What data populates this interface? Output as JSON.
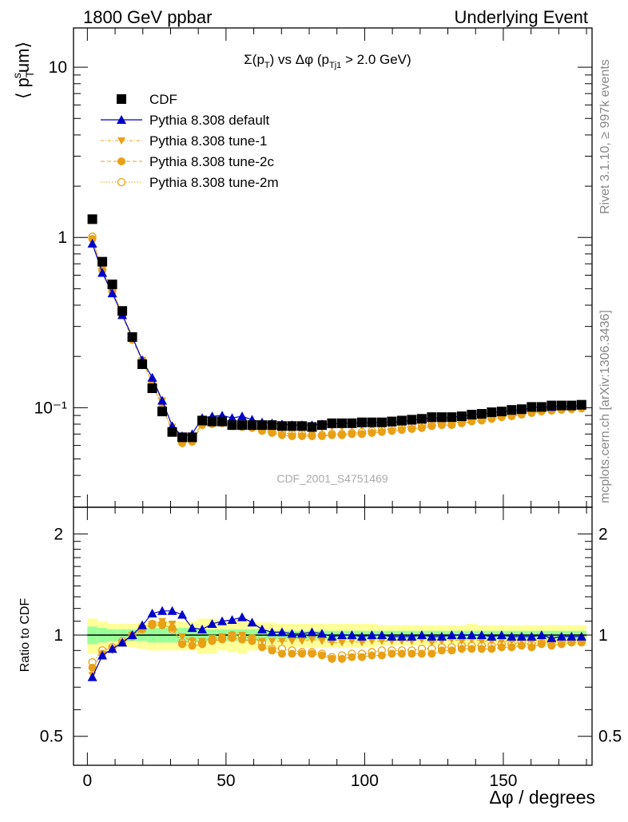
{
  "header": {
    "left": "1800 GeV ppbar",
    "right": "Underlying Event"
  },
  "side": {
    "rivet": "Rivet 3.1.10, ≥ 997k events",
    "mcplots": "mcplots.cern.ch [arXiv:1306.3436]"
  },
  "watermark": "CDF_2001_S4751469",
  "colors": {
    "data": "#000000",
    "default": "#0000cc",
    "tune": "#e8a015",
    "band_inner": "#99ff99",
    "band_outer": "#ffff99"
  },
  "chart_data": [
    {
      "type": "scatter",
      "title": "Σ(pT) vs Δφ (pTj1 > 2.0 GeV)",
      "ylabel": "⟨ pT sum ⟩",
      "xlabel": "",
      "yscale": "log",
      "xlim": [
        -5,
        182
      ],
      "ylim": [
        0.026,
        17
      ],
      "yticks": [
        {
          "v": 10,
          "label": "10"
        },
        {
          "v": 1,
          "label": "1"
        },
        {
          "v": 0.1,
          "label": "10⁻¹"
        }
      ],
      "legend": {
        "placement": "top-left",
        "entries": [
          "CDF",
          "Pythia 8.308 default",
          "Pythia 8.308 tune-1",
          "Pythia 8.308 tune-2c",
          "Pythia 8.308 tune-2m"
        ]
      },
      "x": [
        1.8,
        5.4,
        9.0,
        12.6,
        16.2,
        19.8,
        23.4,
        27.0,
        30.6,
        34.2,
        37.8,
        41.4,
        45.0,
        48.6,
        52.2,
        55.8,
        59.4,
        63.0,
        66.6,
        70.2,
        73.8,
        77.4,
        81.0,
        84.6,
        88.2,
        91.8,
        95.4,
        99.0,
        102.6,
        106.2,
        109.8,
        113.4,
        117.0,
        120.6,
        124.2,
        127.8,
        131.4,
        135.0,
        138.6,
        142.2,
        145.8,
        149.4,
        153.0,
        156.6,
        160.2,
        163.8,
        167.4,
        171.0,
        174.6,
        178.2
      ],
      "series": [
        {
          "name": "CDF",
          "values": [
            1.28,
            0.72,
            0.53,
            0.37,
            0.26,
            0.18,
            0.13,
            0.095,
            0.072,
            0.067,
            0.067,
            0.084,
            0.083,
            0.083,
            0.079,
            0.079,
            0.079,
            0.079,
            0.079,
            0.078,
            0.078,
            0.078,
            0.077,
            0.079,
            0.081,
            0.081,
            0.081,
            0.082,
            0.082,
            0.082,
            0.083,
            0.084,
            0.085,
            0.086,
            0.088,
            0.088,
            0.088,
            0.089,
            0.091,
            0.092,
            0.094,
            0.095,
            0.097,
            0.098,
            0.101,
            0.101,
            0.103,
            0.103,
            0.103,
            0.104
          ]
        },
        {
          "name": "Pythia 8.308 default",
          "values": [
            0.92,
            0.62,
            0.47,
            0.35,
            0.26,
            0.19,
            0.15,
            0.11,
            0.078,
            0.068,
            0.07,
            0.087,
            0.089,
            0.09,
            0.087,
            0.089,
            0.085,
            0.082,
            0.081,
            0.08,
            0.079,
            0.079,
            0.079,
            0.08,
            0.08,
            0.081,
            0.081,
            0.081,
            0.082,
            0.082,
            0.082,
            0.083,
            0.084,
            0.086,
            0.087,
            0.087,
            0.088,
            0.089,
            0.091,
            0.092,
            0.093,
            0.095,
            0.096,
            0.097,
            0.1,
            0.101,
            0.101,
            0.102,
            0.102,
            0.103
          ]
        },
        {
          "name": "Pythia 8.308 tune-1",
          "values": [
            0.94,
            0.63,
            0.48,
            0.35,
            0.26,
            0.19,
            0.14,
            0.11,
            0.077,
            0.065,
            0.066,
            0.081,
            0.082,
            0.082,
            0.079,
            0.079,
            0.077,
            0.076,
            0.076,
            0.075,
            0.075,
            0.075,
            0.075,
            0.076,
            0.077,
            0.077,
            0.078,
            0.078,
            0.079,
            0.079,
            0.08,
            0.081,
            0.082,
            0.083,
            0.084,
            0.085,
            0.085,
            0.086,
            0.088,
            0.089,
            0.09,
            0.092,
            0.093,
            0.095,
            0.097,
            0.098,
            0.099,
            0.1,
            0.1,
            0.101
          ]
        },
        {
          "name": "Pythia 8.308 tune-2c",
          "values": [
            0.98,
            0.64,
            0.48,
            0.35,
            0.25,
            0.19,
            0.14,
            0.1,
            0.074,
            0.062,
            0.063,
            0.079,
            0.08,
            0.081,
            0.078,
            0.077,
            0.076,
            0.073,
            0.071,
            0.069,
            0.068,
            0.068,
            0.068,
            0.068,
            0.069,
            0.069,
            0.07,
            0.07,
            0.071,
            0.072,
            0.073,
            0.074,
            0.075,
            0.076,
            0.078,
            0.079,
            0.079,
            0.081,
            0.083,
            0.084,
            0.086,
            0.088,
            0.089,
            0.091,
            0.093,
            0.095,
            0.096,
            0.097,
            0.098,
            0.099
          ]
        },
        {
          "name": "Pythia 8.308 tune-2m",
          "values": [
            1.01,
            0.65,
            0.49,
            0.36,
            0.26,
            0.19,
            0.14,
            0.1,
            0.074,
            0.062,
            0.064,
            0.08,
            0.081,
            0.082,
            0.079,
            0.078,
            0.077,
            0.075,
            0.072,
            0.071,
            0.07,
            0.07,
            0.069,
            0.069,
            0.07,
            0.07,
            0.071,
            0.072,
            0.073,
            0.074,
            0.075,
            0.076,
            0.077,
            0.078,
            0.08,
            0.081,
            0.081,
            0.083,
            0.085,
            0.086,
            0.088,
            0.089,
            0.091,
            0.093,
            0.095,
            0.096,
            0.097,
            0.099,
            0.099,
            0.1
          ]
        }
      ]
    },
    {
      "type": "scatter",
      "title": "",
      "ylabel": "Ratio to CDF",
      "xlabel": "Δφ / degrees",
      "yscale": "log",
      "xlim": [
        -5,
        182
      ],
      "ylim": [
        0.41,
        2.4
      ],
      "yticks": [
        {
          "v": 2,
          "label": "2"
        },
        {
          "v": 1,
          "label": "1"
        },
        {
          "v": 0.5,
          "label": "0.5"
        }
      ],
      "xticks": [
        0,
        50,
        100,
        150
      ],
      "band_inner": [
        0.06,
        0.05,
        0.04,
        0.04,
        0.04,
        0.04,
        0.05,
        0.05,
        0.05,
        0.05,
        0.05,
        0.04,
        0.04,
        0.04,
        0.04,
        0.04,
        0.04,
        0.04,
        0.03,
        0.03,
        0.03,
        0.03,
        0.03,
        0.03,
        0.03,
        0.03,
        0.03,
        0.03,
        0.03,
        0.03,
        0.03,
        0.03,
        0.03,
        0.03,
        0.03,
        0.03,
        0.03,
        0.03,
        0.03,
        0.03,
        0.03,
        0.03,
        0.03,
        0.03,
        0.03,
        0.03,
        0.03,
        0.03,
        0.03,
        0.03
      ],
      "band_outer": [
        0.12,
        0.1,
        0.08,
        0.08,
        0.08,
        0.09,
        0.1,
        0.1,
        0.1,
        0.1,
        0.1,
        0.12,
        0.12,
        0.1,
        0.11,
        0.12,
        0.1,
        0.09,
        0.09,
        0.08,
        0.08,
        0.08,
        0.08,
        0.08,
        0.08,
        0.08,
        0.08,
        0.08,
        0.08,
        0.07,
        0.07,
        0.07,
        0.07,
        0.07,
        0.07,
        0.07,
        0.07,
        0.07,
        0.08,
        0.07,
        0.07,
        0.07,
        0.07,
        0.07,
        0.07,
        0.07,
        0.07,
        0.07,
        0.07,
        0.07
      ],
      "series": [
        {
          "name": "Pythia 8.308 default",
          "values": [
            0.75,
            0.87,
            0.91,
            0.95,
            1.0,
            1.07,
            1.16,
            1.18,
            1.18,
            1.15,
            1.05,
            1.04,
            1.08,
            1.1,
            1.11,
            1.13,
            1.09,
            1.04,
            1.02,
            1.02,
            1.01,
            1.01,
            1.02,
            1.01,
            0.99,
            1.0,
            1.0,
            0.99,
            1.0,
            1.0,
            0.99,
            0.99,
            0.99,
            1.0,
            0.99,
            0.99,
            1.0,
            1.0,
            1.0,
            1.0,
            0.99,
            1.0,
            0.99,
            0.99,
            0.99,
            1.0,
            0.98,
            0.99,
            0.99,
            0.99
          ]
        },
        {
          "name": "Pythia 8.308 tune-1",
          "values": [
            0.76,
            0.87,
            0.9,
            0.95,
            1.0,
            1.05,
            1.08,
            1.1,
            1.08,
            0.99,
            0.96,
            0.96,
            0.98,
            0.99,
            1.0,
            1.0,
            0.98,
            0.96,
            0.96,
            0.96,
            0.96,
            0.96,
            0.97,
            0.96,
            0.95,
            0.95,
            0.96,
            0.95,
            0.96,
            0.96,
            0.96,
            0.96,
            0.96,
            0.97,
            0.95,
            0.96,
            0.97,
            0.96,
            0.97,
            0.96,
            0.96,
            0.96,
            0.96,
            0.96,
            0.96,
            0.97,
            0.96,
            0.97,
            0.97,
            0.97
          ]
        },
        {
          "name": "Pythia 8.308 tune-2c",
          "values": [
            0.8,
            0.88,
            0.91,
            0.95,
            0.99,
            1.04,
            1.07,
            1.07,
            1.05,
            0.94,
            0.93,
            0.94,
            0.96,
            0.97,
            0.98,
            0.97,
            0.96,
            0.92,
            0.9,
            0.88,
            0.88,
            0.88,
            0.88,
            0.87,
            0.85,
            0.85,
            0.86,
            0.86,
            0.87,
            0.87,
            0.88,
            0.88,
            0.88,
            0.88,
            0.88,
            0.9,
            0.9,
            0.91,
            0.91,
            0.91,
            0.91,
            0.92,
            0.92,
            0.93,
            0.92,
            0.94,
            0.93,
            0.94,
            0.95,
            0.95
          ]
        },
        {
          "name": "Pythia 8.308 tune-2m",
          "values": [
            0.83,
            0.9,
            0.92,
            0.96,
            1.0,
            1.05,
            1.08,
            1.08,
            1.04,
            0.95,
            0.96,
            0.95,
            0.97,
            0.98,
            1.0,
            0.99,
            0.98,
            0.95,
            0.91,
            0.91,
            0.9,
            0.89,
            0.89,
            0.88,
            0.86,
            0.87,
            0.88,
            0.88,
            0.89,
            0.9,
            0.9,
            0.9,
            0.9,
            0.91,
            0.91,
            0.92,
            0.92,
            0.93,
            0.93,
            0.93,
            0.93,
            0.94,
            0.94,
            0.95,
            0.94,
            0.95,
            0.95,
            0.96,
            0.96,
            0.96
          ]
        }
      ]
    }
  ]
}
